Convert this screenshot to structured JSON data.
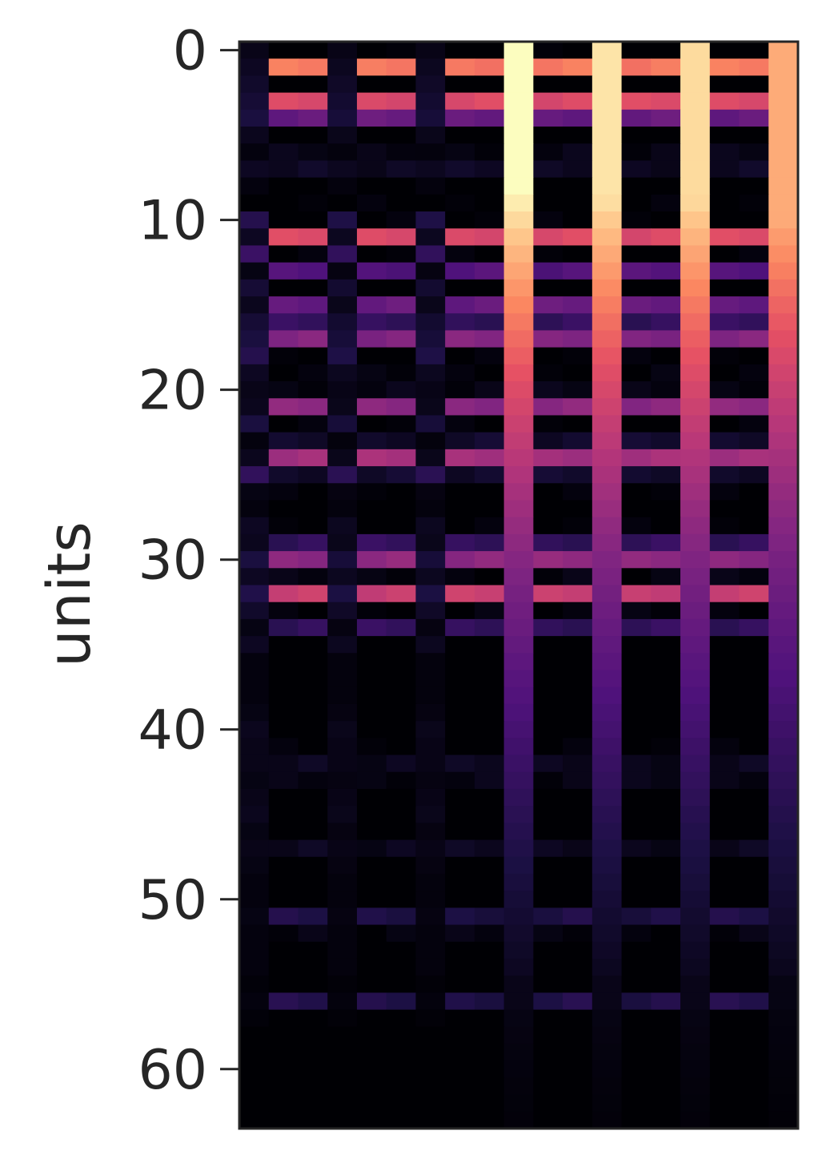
{
  "chart_data": {
    "type": "heatmap",
    "title": "",
    "xlabel": "",
    "ylabel": "units",
    "colormap": "magma",
    "color_range": [
      0,
      1
    ],
    "rows": 64,
    "columns": 19,
    "x_ticks": [],
    "y_ticks": [
      0,
      10,
      20,
      30,
      40,
      50,
      60
    ],
    "y_tick_labels": [
      "0",
      "10",
      "20",
      "30",
      "40",
      "50",
      "60"
    ],
    "y_inverted": true,
    "grid": false,
    "legend": "none",
    "bright_columns": [
      9,
      12,
      15,
      18
    ],
    "bright_column_peak_values": [
      1.0,
      0.95,
      0.93,
      0.83
    ],
    "bright_column_floor_values": [
      0.04,
      0.04,
      0.04,
      0.03
    ],
    "row_intensity": [
      0.01,
      0.74,
      0.0,
      0.62,
      0.33,
      0.0,
      0.05,
      0.08,
      0.0,
      0.02,
      0.02,
      0.62,
      0.02,
      0.28,
      0.0,
      0.33,
      0.2,
      0.4,
      0.02,
      0.03,
      0.05,
      0.42,
      0.02,
      0.1,
      0.48,
      0.1,
      0.02,
      0.0,
      0.02,
      0.2,
      0.43,
      0.04,
      0.57,
      0.03,
      0.2,
      0.0,
      0.0,
      0.0,
      0.0,
      0.0,
      0.0,
      0.02,
      0.07,
      0.05,
      0.0,
      0.0,
      0.0,
      0.07,
      0.0,
      0.0,
      0.0,
      0.15,
      0.04,
      0.0,
      0.0,
      0.0,
      0.16,
      0.0,
      0.0,
      0.0,
      0.0,
      0.0,
      0.0,
      0.0
    ],
    "left_column_values": [
      0.04,
      0.06,
      0.08,
      0.1,
      0.12,
      0.05,
      0.02,
      0.06,
      0.02,
      0.0,
      0.15,
      0.06,
      0.2,
      0.03,
      0.1,
      0.05,
      0.1,
      0.12,
      0.15,
      0.06,
      0.04,
      0.05,
      0.12,
      0.02,
      0.05,
      0.18,
      0.03,
      0.02,
      0.06,
      0.05,
      0.12,
      0.06,
      0.14,
      0.08,
      0.03,
      0.06,
      0.02,
      0.02,
      0.02,
      0.03,
      0.05,
      0.04,
      0.04,
      0.03,
      0.04,
      0.05,
      0.03,
      0.04,
      0.03,
      0.02,
      0.02,
      0.03,
      0.02,
      0.02,
      0.02,
      0.01,
      0.02,
      0.01,
      0.0,
      0.0,
      0.0,
      0.0,
      0.0,
      0.0
    ]
  }
}
